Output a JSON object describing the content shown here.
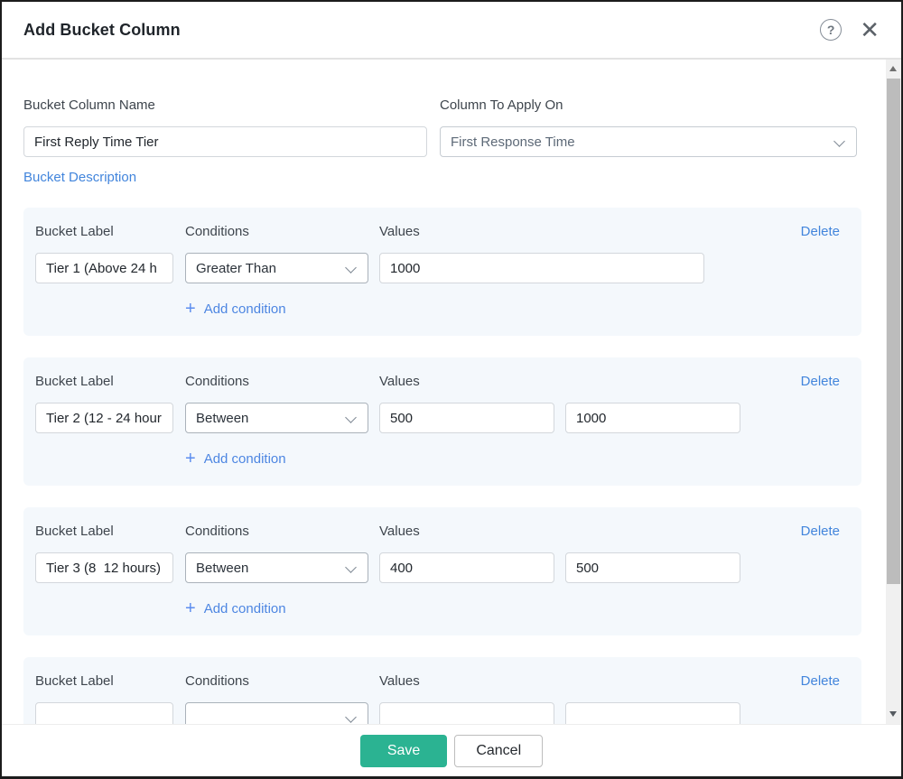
{
  "header": {
    "title": "Add Bucket Column",
    "help_glyph": "?",
    "close_glyph": "✕"
  },
  "form": {
    "name_label": "Bucket Column Name",
    "name_value": "First Reply Time Tier",
    "apply_label": "Column To Apply On",
    "apply_value": "First Response Time",
    "description_link": "Bucket Description"
  },
  "card_strings": {
    "bucket_label": "Bucket Label",
    "conditions": "Conditions",
    "values": "Values",
    "delete": "Delete",
    "plus": "+",
    "add_condition": "Add condition"
  },
  "buckets": [
    {
      "label": "Tier 1 (Above 24 h",
      "condition": "Greater Than",
      "value1": "1000"
    },
    {
      "label": "Tier 2 (12 - 24 hour",
      "condition": "Between",
      "value1": "500",
      "value2": "1000"
    },
    {
      "label": "Tier 3 (8  12 hours)",
      "condition": "Between",
      "value1": "400",
      "value2": "500"
    },
    {
      "label": "",
      "condition": "",
      "value1": "",
      "value2": ""
    }
  ],
  "footer": {
    "save": "Save",
    "cancel": "Cancel"
  },
  "colors": {
    "accent_green": "#2bb392",
    "link_blue": "#4285dc",
    "card_bg": "#f4f8fc"
  }
}
